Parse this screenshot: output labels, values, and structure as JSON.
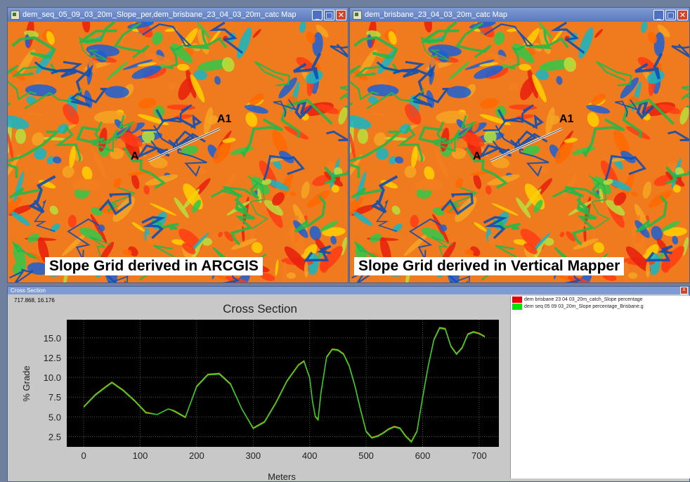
{
  "windows": {
    "left_map": {
      "title": "dem_seq_05_09_03_20m_Slope_per,dem_brisbane_23_04_03_20m_catc Map",
      "caption": "Slope Grid derived in ARCGIS",
      "point_a": "A",
      "point_a1": "A1"
    },
    "right_map": {
      "title": "dem_brisbane_23_04_03_20m_catc Map",
      "caption": "Slope Grid derived in Vertical Mapper",
      "point_a": "A",
      "point_a1": "A1"
    },
    "controls": {
      "minimize": "_",
      "maximize": "□",
      "close": "✕"
    }
  },
  "cross_section_window": {
    "title": "Cross Section",
    "coordinate_readout": "717.868, 16.176",
    "close": "x",
    "legend": [
      {
        "label": "dem brisbane 23 04 03_20m_catch_Slope percentage",
        "color": "#e60000"
      },
      {
        "label": "dem seq 05 09 03_20m_Slope percentage_Brisbane.g",
        "color": "#00e600"
      }
    ]
  },
  "colors": {
    "plot_background": "#000000",
    "series_red": "#e60000",
    "series_green": "#2fd12f"
  },
  "chart_data": {
    "type": "line",
    "title": "Cross Section",
    "xlabel": "Meters",
    "ylabel": "% Grade",
    "xlim": [
      -30,
      735
    ],
    "ylim": [
      1.2,
      17.3
    ],
    "xticks": [
      0,
      100,
      200,
      300,
      400,
      500,
      600,
      700
    ],
    "yticks": [
      2.5,
      5.0,
      7.5,
      10.0,
      12.5,
      15.0
    ],
    "ytick_labels": [
      "2.5",
      "5.0",
      "7.5",
      "10.0",
      "12.5",
      "15.0"
    ],
    "grid": true,
    "series": [
      {
        "name": "dem brisbane 23 04 03_20m_catch_Slope percentage",
        "color": "#e60000",
        "x": [
          0,
          20,
          40,
          50,
          70,
          90,
          110,
          130,
          150,
          160,
          180,
          200,
          220,
          240,
          260,
          280,
          300,
          320,
          340,
          360,
          380,
          390,
          400,
          405,
          410,
          415,
          420,
          430,
          440,
          450,
          460,
          470,
          480,
          490,
          500,
          510,
          520,
          530,
          540,
          550,
          560,
          570,
          580,
          590,
          600,
          610,
          620,
          630,
          640,
          650,
          660,
          670,
          680,
          690,
          700,
          710
        ],
        "y": [
          6.3,
          7.8,
          8.9,
          9.4,
          8.4,
          7.1,
          5.6,
          5.3,
          6.0,
          5.7,
          4.9,
          8.9,
          10.4,
          10.5,
          9.2,
          6.0,
          3.6,
          4.4,
          6.8,
          9.6,
          11.6,
          12.1,
          10.0,
          7.0,
          5.0,
          4.6,
          8.0,
          12.6,
          13.6,
          13.5,
          13.0,
          11.5,
          9.0,
          6.0,
          3.2,
          2.4,
          2.6,
          3.0,
          3.5,
          3.8,
          3.6,
          2.6,
          1.9,
          3.2,
          7.5,
          11.5,
          14.8,
          16.3,
          16.2,
          14.0,
          13.0,
          13.8,
          15.5,
          15.8,
          15.6,
          15.2
        ]
      },
      {
        "name": "dem seq 05 09 03_20m_Slope percentage_Brisbane.g",
        "color": "#2fd12f",
        "x": [
          0,
          20,
          40,
          50,
          70,
          90,
          110,
          130,
          150,
          160,
          180,
          200,
          220,
          240,
          260,
          280,
          300,
          320,
          340,
          360,
          380,
          390,
          400,
          405,
          410,
          415,
          420,
          430,
          440,
          450,
          460,
          470,
          480,
          490,
          500,
          510,
          520,
          530,
          540,
          550,
          560,
          570,
          580,
          590,
          600,
          610,
          620,
          630,
          640,
          650,
          660,
          670,
          680,
          690,
          700,
          710
        ],
        "y": [
          6.2,
          7.7,
          8.8,
          9.3,
          8.3,
          7.0,
          5.5,
          5.3,
          6.0,
          5.8,
          5.0,
          8.8,
          10.3,
          10.4,
          9.1,
          6.0,
          3.5,
          4.3,
          6.7,
          9.5,
          11.5,
          12.0,
          9.9,
          7.0,
          5.1,
          4.7,
          8.1,
          12.5,
          13.5,
          13.4,
          12.9,
          11.4,
          8.9,
          5.9,
          3.1,
          2.3,
          2.5,
          2.9,
          3.4,
          3.7,
          3.5,
          2.5,
          1.8,
          3.1,
          7.4,
          11.4,
          14.7,
          16.2,
          16.1,
          13.9,
          12.9,
          13.7,
          15.4,
          15.7,
          15.5,
          15.1
        ]
      }
    ]
  }
}
